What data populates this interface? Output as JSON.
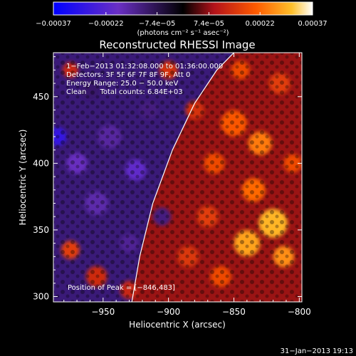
{
  "chart_data": {
    "type": "heatmap",
    "title": "Reconstructed RHESSI Image",
    "xlabel": "Heliocentric X (arcsec)",
    "ylabel": "Heliocentric Y (arcsec)",
    "xlim": [
      -988,
      -798
    ],
    "ylim": [
      296,
      483
    ],
    "x_ticks": [
      -950,
      -900,
      -850,
      -800
    ],
    "x_tick_labels": [
      "−950",
      "−900",
      "−850",
      "−800"
    ],
    "y_ticks": [
      300,
      350,
      400,
      450
    ],
    "y_tick_labels": [
      "300",
      "350",
      "400",
      "450"
    ],
    "colorbar": {
      "min": -0.00037,
      "max": 0.00037,
      "ticks": [
        -0.00037,
        -0.00022,
        -7.4e-05,
        7.4e-05,
        0.00022,
        0.00037
      ],
      "tick_labels": [
        "−0.00037",
        "−0.00022",
        "−7.4e−05",
        "7.4e−05",
        "0.00022",
        "0.00037"
      ],
      "unit_label": "(photons cm⁻² s⁻¹ asec⁻²)"
    },
    "annotations": [
      "1−Feb−2013 01:32:08.000 to 01:36:00.000",
      "Detectors: 3F 5F 6F 7F 8F 9F, Att 0",
      "Energy Range: 25.0 − 50.0 keV",
      "Clean      Total counts: 6.84E+03"
    ],
    "peak_label": "Position of Peak = [−846,483]",
    "peak_position": [
      -846,
      483
    ],
    "timestamp": "31−Jan−2013 19:13",
    "grid": false,
    "limb_curve": {
      "description_free": true,
      "points": [
        [
          -928,
          296
        ],
        [
          -922,
          330
        ],
        [
          -912,
          370
        ],
        [
          -897,
          410
        ],
        [
          -880,
          445
        ],
        [
          -863,
          470
        ],
        [
          -850,
          483
        ]
      ]
    },
    "regions": [
      {
        "x": -985,
        "y": 420,
        "r": 7,
        "value": -0.00028
      },
      {
        "x": -970,
        "y": 400,
        "r": 8,
        "value": -0.00018
      },
      {
        "x": -945,
        "y": 420,
        "r": 9,
        "value": -0.00015
      },
      {
        "x": -925,
        "y": 395,
        "r": 8,
        "value": -0.0002
      },
      {
        "x": -915,
        "y": 440,
        "r": 7,
        "value": -0.00012
      },
      {
        "x": -955,
        "y": 370,
        "r": 9,
        "value": -0.00016
      },
      {
        "x": -905,
        "y": 360,
        "r": 7,
        "value": -0.00012
      },
      {
        "x": -930,
        "y": 340,
        "r": 7,
        "value": -0.00014
      },
      {
        "x": -960,
        "y": 455,
        "r": 7,
        "value": -0.0001
      },
      {
        "x": -900,
        "y": 470,
        "r": 7,
        "value": 0.00014
      },
      {
        "x": -975,
        "y": 470,
        "r": 6,
        "value": 0.00012
      },
      {
        "x": -850,
        "y": 430,
        "r": 10,
        "value": 0.0002
      },
      {
        "x": -830,
        "y": 415,
        "r": 9,
        "value": 0.00024
      },
      {
        "x": -865,
        "y": 400,
        "r": 8,
        "value": 0.00018
      },
      {
        "x": -835,
        "y": 380,
        "r": 9,
        "value": 0.00022
      },
      {
        "x": -820,
        "y": 355,
        "r": 11,
        "value": 0.0003
      },
      {
        "x": -840,
        "y": 340,
        "r": 10,
        "value": 0.00028
      },
      {
        "x": -812,
        "y": 330,
        "r": 8,
        "value": 0.00026
      },
      {
        "x": -870,
        "y": 360,
        "r": 8,
        "value": 0.00016
      },
      {
        "x": -885,
        "y": 330,
        "r": 8,
        "value": 0.00015
      },
      {
        "x": -860,
        "y": 315,
        "r": 8,
        "value": 0.00018
      },
      {
        "x": -815,
        "y": 460,
        "r": 8,
        "value": 0.00016
      },
      {
        "x": -880,
        "y": 440,
        "r": 7,
        "value": 0.00014
      },
      {
        "x": -955,
        "y": 315,
        "r": 8,
        "value": 0.00013
      },
      {
        "x": -975,
        "y": 335,
        "r": 7,
        "value": 0.00016
      },
      {
        "x": -930,
        "y": 305,
        "r": 7,
        "value": 0.00012
      },
      {
        "x": -805,
        "y": 400,
        "r": 7,
        "value": 0.00018
      },
      {
        "x": -845,
        "y": 470,
        "r": 7,
        "value": 0.00018
      }
    ]
  }
}
